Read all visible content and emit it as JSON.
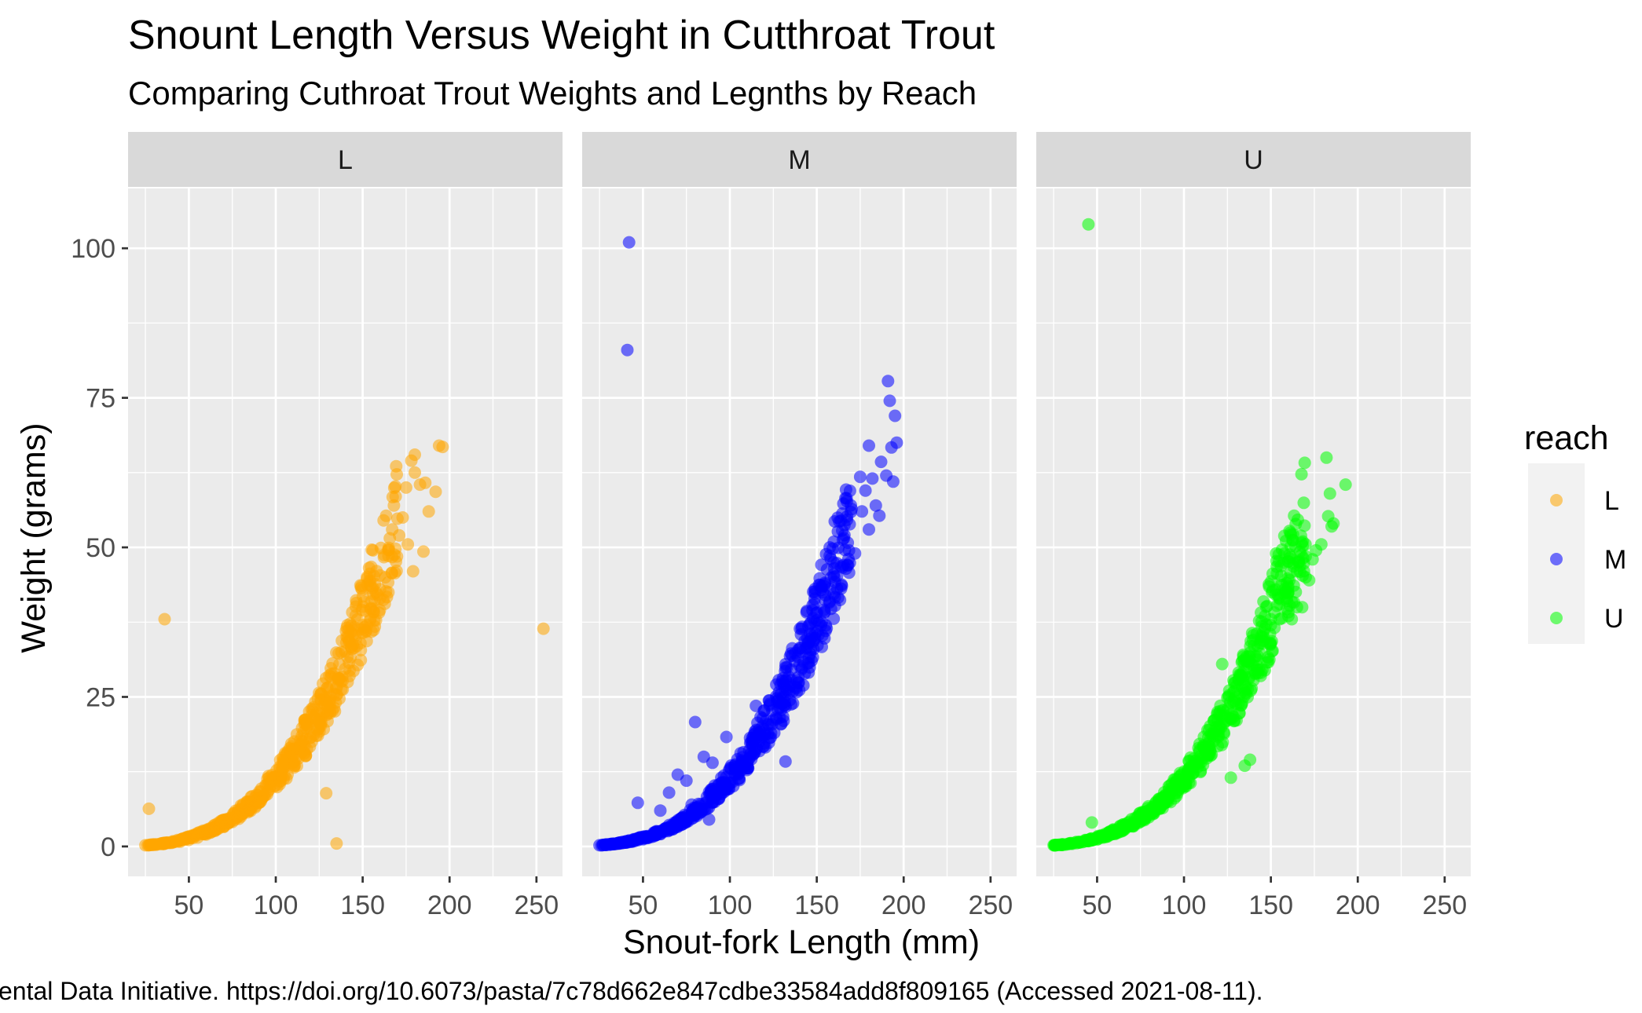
{
  "chart_data": {
    "type": "scatter",
    "title": "Snount Length Versus Weight in Cutthroat Trout",
    "subtitle": "Comparing Cuthroat Trout Weights and Legnths by Reach",
    "xlabel": "Snout-fork Length (mm)",
    "ylabel": "Weight (grams)",
    "caption": "ental Data Initiative. https://doi.org/10.6073/pasta/7c78d662e847cdbe33584add8f809165 (Accessed 2021-08-11).",
    "xlim": [
      15,
      265
    ],
    "ylim": [
      -5,
      110
    ],
    "x_ticks": [
      50,
      100,
      150,
      200,
      250
    ],
    "y_ticks": [
      0,
      25,
      50,
      75,
      100
    ],
    "grid": true,
    "legend": {
      "title": "reach",
      "position": "right",
      "entries": [
        {
          "label": "L",
          "color": "#FFA500"
        },
        {
          "label": "M",
          "color": "#0000FF"
        },
        {
          "label": "U",
          "color": "#00FF00"
        }
      ]
    },
    "facets": [
      {
        "label": "L",
        "color": "#FFA500",
        "points": [
          [
            25,
            0.2
          ],
          [
            28,
            0.3
          ],
          [
            30,
            0.35
          ],
          [
            33,
            0.4
          ],
          [
            36,
            0.5
          ],
          [
            40,
            0.6
          ],
          [
            45,
            0.8
          ],
          [
            50,
            1.1
          ],
          [
            55,
            1.5
          ],
          [
            60,
            2.0
          ],
          [
            65,
            2.6
          ],
          [
            70,
            3.3
          ],
          [
            75,
            4.1
          ],
          [
            80,
            5.0
          ],
          [
            85,
            6.1
          ],
          [
            90,
            7.3
          ],
          [
            95,
            8.7
          ],
          [
            100,
            10.2
          ],
          [
            105,
            11.9
          ],
          [
            110,
            13.8
          ],
          [
            115,
            15.9
          ],
          [
            120,
            18.2
          ],
          [
            125,
            20.7
          ],
          [
            130,
            23.5
          ],
          [
            135,
            26.5
          ],
          [
            140,
            29.7
          ],
          [
            145,
            33.2
          ],
          [
            150,
            37.0
          ],
          [
            155,
            41.0
          ],
          [
            160,
            45.3
          ],
          [
            165,
            49.9
          ],
          [
            170,
            54.8
          ],
          [
            175,
            60.0
          ],
          [
            180,
            65.5
          ],
          [
            27,
            6.3
          ],
          [
            36,
            38
          ],
          [
            129,
            8.9
          ],
          [
            135,
            0.5
          ],
          [
            254,
            36.4
          ],
          [
            178,
            64.5
          ],
          [
            180,
            62.5
          ],
          [
            183,
            60.5
          ],
          [
            186,
            60.8
          ],
          [
            188,
            56
          ],
          [
            192,
            59.3
          ],
          [
            194,
            67
          ],
          [
            196,
            66.8
          ],
          [
            185,
            49.3
          ],
          [
            176,
            50.5
          ],
          [
            171,
            52
          ],
          [
            168,
            57
          ],
          [
            167,
            53
          ],
          [
            173,
            55
          ],
          [
            179,
            46
          ],
          [
            163,
            45
          ],
          [
            160,
            43
          ]
        ]
      },
      {
        "label": "M",
        "color": "#0000FF",
        "points": [
          [
            25,
            0.2
          ],
          [
            30,
            0.35
          ],
          [
            35,
            0.5
          ],
          [
            40,
            0.7
          ],
          [
            45,
            0.9
          ],
          [
            50,
            1.2
          ],
          [
            55,
            1.6
          ],
          [
            60,
            2.1
          ],
          [
            65,
            2.7
          ],
          [
            70,
            3.4
          ],
          [
            75,
            4.2
          ],
          [
            80,
            5.2
          ],
          [
            85,
            6.3
          ],
          [
            90,
            7.5
          ],
          [
            95,
            8.9
          ],
          [
            100,
            10.5
          ],
          [
            105,
            12.2
          ],
          [
            110,
            14.1
          ],
          [
            115,
            16.2
          ],
          [
            120,
            18.6
          ],
          [
            125,
            21.1
          ],
          [
            130,
            23.9
          ],
          [
            135,
            27.0
          ],
          [
            140,
            30.3
          ],
          [
            145,
            33.9
          ],
          [
            150,
            37.8
          ],
          [
            155,
            42.0
          ],
          [
            160,
            46.5
          ],
          [
            165,
            51.3
          ],
          [
            170,
            56.4
          ],
          [
            175,
            61.8
          ],
          [
            180,
            67.0
          ],
          [
            42,
            101
          ],
          [
            41,
            83
          ],
          [
            47,
            7.3
          ],
          [
            80,
            20.8
          ],
          [
            98,
            18.3
          ],
          [
            115,
            23.5
          ],
          [
            132,
            14.2
          ],
          [
            191,
            77.8
          ],
          [
            192,
            74.5
          ],
          [
            195,
            72
          ],
          [
            196,
            67.5
          ],
          [
            193,
            66.7
          ],
          [
            187,
            64.3
          ],
          [
            182,
            61.5
          ],
          [
            178,
            59.5
          ],
          [
            194,
            61
          ],
          [
            190,
            62
          ],
          [
            184,
            57
          ],
          [
            176,
            56
          ],
          [
            186,
            55.3
          ],
          [
            180,
            53
          ],
          [
            172,
            49
          ],
          [
            168,
            47
          ],
          [
            70,
            12
          ],
          [
            75,
            11
          ],
          [
            85,
            15
          ],
          [
            90,
            14
          ],
          [
            60,
            6
          ],
          [
            65,
            9
          ],
          [
            78,
            7
          ],
          [
            88,
            4.5
          ]
        ]
      },
      {
        "label": "U",
        "color": "#00FF00",
        "points": [
          [
            25,
            0.2
          ],
          [
            30,
            0.35
          ],
          [
            35,
            0.5
          ],
          [
            40,
            0.7
          ],
          [
            45,
            0.9
          ],
          [
            50,
            1.2
          ],
          [
            55,
            1.6
          ],
          [
            60,
            2.1
          ],
          [
            65,
            2.7
          ],
          [
            70,
            3.4
          ],
          [
            75,
            4.2
          ],
          [
            80,
            5.2
          ],
          [
            85,
            6.3
          ],
          [
            90,
            7.5
          ],
          [
            95,
            8.9
          ],
          [
            100,
            10.5
          ],
          [
            105,
            12.2
          ],
          [
            110,
            14.1
          ],
          [
            115,
            16.2
          ],
          [
            120,
            18.6
          ],
          [
            125,
            21.1
          ],
          [
            130,
            23.9
          ],
          [
            135,
            27.0
          ],
          [
            140,
            30.3
          ],
          [
            145,
            33.9
          ],
          [
            150,
            37.0
          ],
          [
            155,
            40.5
          ],
          [
            160,
            43.5
          ],
          [
            165,
            46.0
          ],
          [
            170,
            48.5
          ],
          [
            45,
            104
          ],
          [
            47,
            4.0
          ],
          [
            122,
            30.5
          ],
          [
            127,
            11.5
          ],
          [
            135,
            13.5
          ],
          [
            138,
            14.5
          ],
          [
            182,
            65
          ],
          [
            193,
            60.5
          ],
          [
            184,
            59
          ],
          [
            186,
            54
          ],
          [
            183,
            55.2
          ],
          [
            185,
            53.5
          ],
          [
            179,
            50.5
          ],
          [
            176,
            49.5
          ],
          [
            174,
            48
          ],
          [
            172,
            44.5
          ],
          [
            170,
            45
          ],
          [
            158,
            43
          ],
          [
            153,
            49
          ],
          [
            165,
            40
          ],
          [
            168,
            40
          ],
          [
            162,
            38
          ],
          [
            155,
            38
          ],
          [
            150,
            34
          ]
        ]
      }
    ]
  }
}
